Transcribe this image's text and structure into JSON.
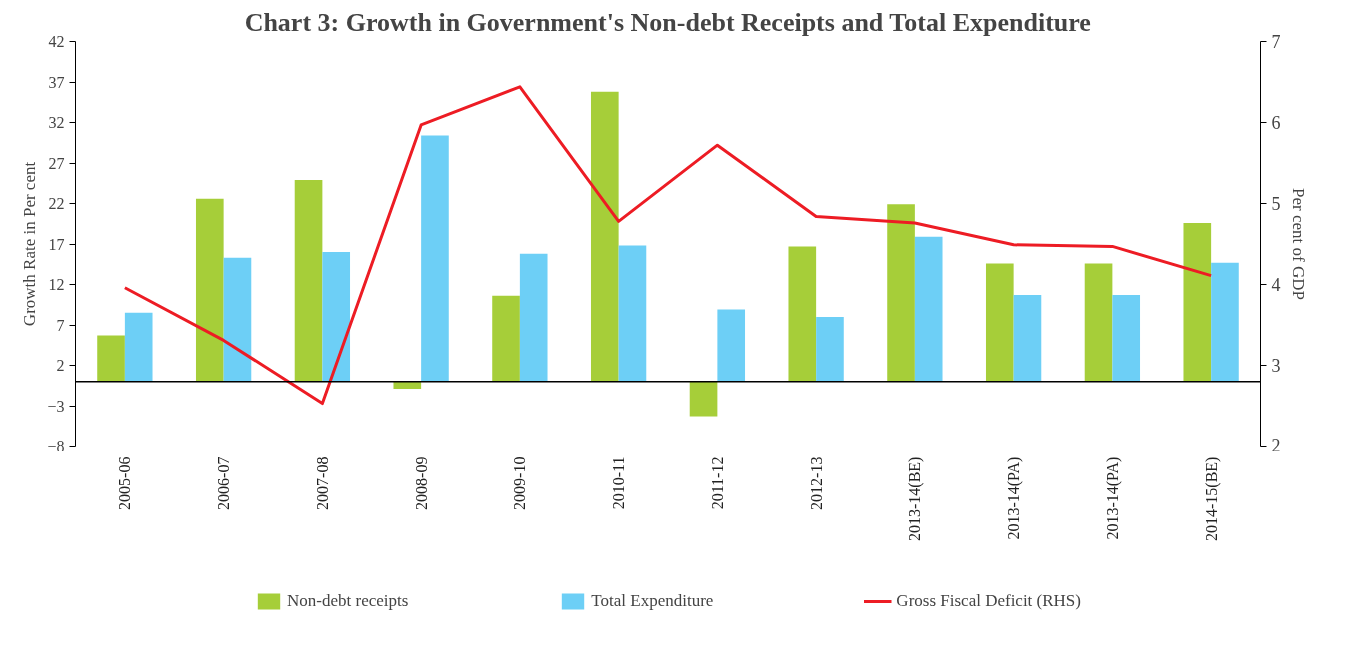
{
  "chart_data": {
    "type": "bar",
    "title": "Chart 3: Growth in Government's Non-debt Receipts and Total Expenditure",
    "ylabel": "Growth Rate in Per cent",
    "y2label": "Per cent of GDP",
    "categories": [
      "2005-06",
      "2006-07",
      "2007-08",
      "2008-09",
      "2009-10",
      "2010-11",
      "2011-12",
      "2012-13",
      "2013-14(BE)",
      "2013-14(PA)",
      "2013-14(PA)",
      "2014-15(BE)"
    ],
    "series": [
      {
        "name": "Non-debt receipts",
        "color": "#a6ce39",
        "values": [
          5.7,
          22.6,
          24.9,
          -0.9,
          10.6,
          35.8,
          -4.3,
          16.7,
          21.9,
          14.6,
          14.6,
          19.6
        ]
      },
      {
        "name": "Total Expenditure",
        "color": "#6dcff6",
        "values": [
          8.5,
          15.3,
          16.0,
          30.4,
          15.8,
          16.8,
          8.9,
          8.0,
          17.9,
          10.7,
          10.7,
          14.7
        ]
      },
      {
        "name": "Gross Fiscal Deficit (RHS)",
        "type": "line",
        "axis": "y2",
        "color": "#ed1c24",
        "values": [
          3.96,
          3.31,
          2.53,
          5.97,
          6.44,
          4.78,
          5.72,
          4.84,
          4.76,
          4.49,
          4.47,
          4.11
        ]
      }
    ],
    "ylim": [
      -8,
      42
    ],
    "yticks": [
      -8,
      -3,
      2,
      7,
      12,
      17,
      22,
      27,
      32,
      37,
      42
    ],
    "y2lim": [
      2,
      7
    ],
    "y2ticks": [
      2,
      3,
      4,
      5,
      6,
      7
    ],
    "grid": false,
    "legend": "bottom",
    "marker": "none",
    "line_style": "solid"
  }
}
